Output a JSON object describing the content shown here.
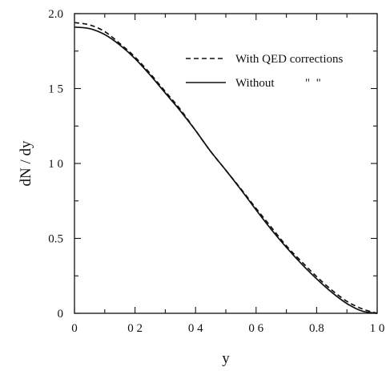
{
  "chart_data": {
    "type": "line",
    "xlabel": "y",
    "ylabel": "dN / dy",
    "xlim": [
      0,
      1.0
    ],
    "ylim": [
      0,
      2.0
    ],
    "x_ticks": [
      {
        "value": 0,
        "label": "0"
      },
      {
        "value": 0.2,
        "label": "0 2"
      },
      {
        "value": 0.4,
        "label": "0 4"
      },
      {
        "value": 0.6,
        "label": "0 6"
      },
      {
        "value": 0.8,
        "label": "0.8"
      },
      {
        "value": 1.0,
        "label": "1 0"
      }
    ],
    "y_ticks": [
      {
        "value": 0,
        "label": "0"
      },
      {
        "value": 0.5,
        "label": "0.5"
      },
      {
        "value": 1.0,
        "label": "1 0"
      },
      {
        "value": 1.5,
        "label": "1 5"
      },
      {
        "value": 2.0,
        "label": "2.0"
      }
    ],
    "legend_position": "top-right",
    "series": [
      {
        "name": "With QED corrections",
        "style": "dashed",
        "color": "#111111",
        "x": [
          0,
          0.05,
          0.1,
          0.15,
          0.2,
          0.25,
          0.3,
          0.35,
          0.4,
          0.45,
          0.5,
          0.55,
          0.6,
          0.65,
          0.7,
          0.75,
          0.8,
          0.85,
          0.9,
          0.95,
          1.0
        ],
        "y": [
          1.94,
          1.925,
          1.88,
          1.8,
          1.71,
          1.6,
          1.48,
          1.36,
          1.22,
          1.08,
          0.955,
          0.83,
          0.7,
          0.575,
          0.45,
          0.345,
          0.245,
          0.155,
          0.08,
          0.03,
          0.0
        ]
      },
      {
        "name": "Without",
        "legend_suffix": "\"  \"",
        "style": "solid",
        "color": "#111111",
        "x": [
          0,
          0.05,
          0.1,
          0.15,
          0.2,
          0.25,
          0.3,
          0.35,
          0.4,
          0.45,
          0.5,
          0.55,
          0.6,
          0.65,
          0.7,
          0.75,
          0.8,
          0.85,
          0.9,
          0.95,
          1.0
        ],
        "y": [
          1.91,
          1.9,
          1.86,
          1.79,
          1.7,
          1.59,
          1.47,
          1.35,
          1.22,
          1.08,
          0.955,
          0.825,
          0.69,
          0.56,
          0.44,
          0.33,
          0.23,
          0.14,
          0.065,
          0.015,
          0.0
        ]
      }
    ]
  }
}
